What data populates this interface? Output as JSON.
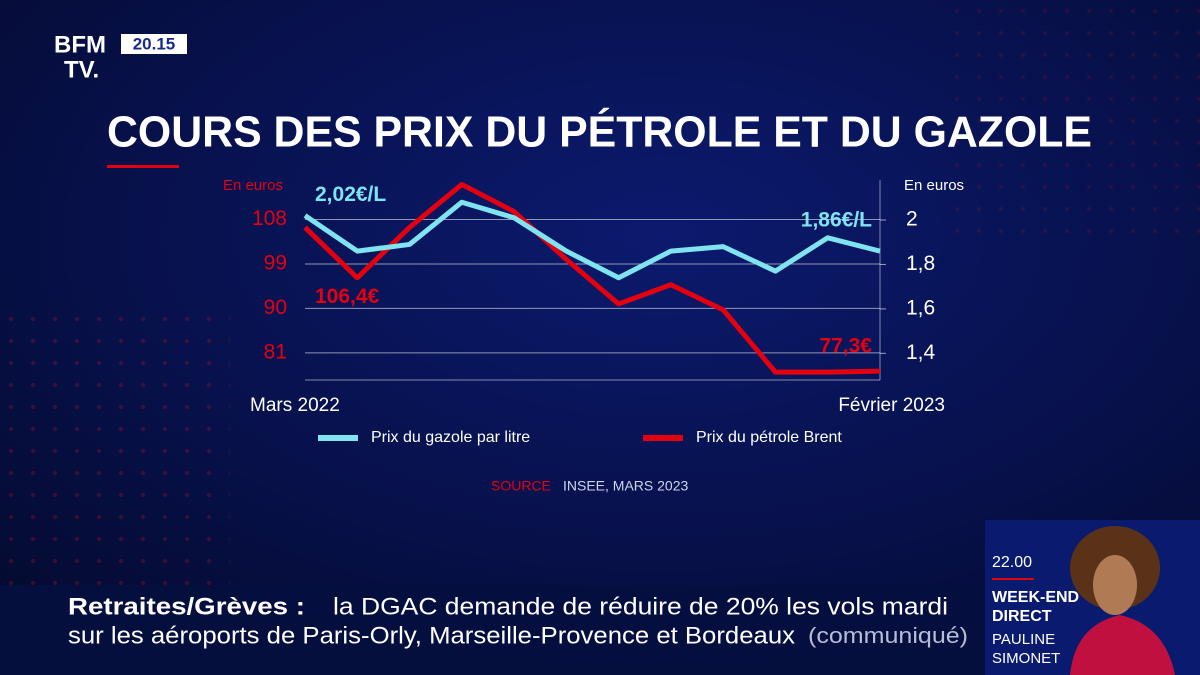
{
  "header": {
    "logo_top": "BFM",
    "logo_bottom": "TV.",
    "time": "20.15"
  },
  "chart_data": {
    "type": "line",
    "title": "COURS DES PRIX DU PÉTROLE ET DU GAZOLE",
    "y_label": "En euros",
    "y2_label": "En euros",
    "categories": [
      "Mars 2022",
      null,
      null,
      null,
      null,
      null,
      null,
      null,
      null,
      null,
      null,
      "Février 2023"
    ],
    "series": [
      {
        "name": "Prix du gazole par litre",
        "color": "#7fe3f0",
        "axis": "y2",
        "values": [
          2.02,
          1.86,
          1.89,
          2.08,
          2.01,
          1.86,
          1.74,
          1.86,
          1.88,
          1.77,
          1.92,
          1.86
        ],
        "value_labels": [
          "2,02€/L",
          null,
          null,
          null,
          null,
          null,
          null,
          null,
          null,
          null,
          null,
          "1,86€/L"
        ]
      },
      {
        "name": "Prix du pétrole Brent",
        "color": "#e3000f",
        "values": [
          106.4,
          96.2,
          106.4,
          115.1,
          109.6,
          99.9,
          90.9,
          94.8,
          89.7,
          77.1,
          77.1,
          77.3
        ],
        "value_labels": [
          "106,4€",
          null,
          null,
          null,
          null,
          null,
          null,
          null,
          null,
          null,
          null,
          "77,3€"
        ]
      }
    ],
    "ylim": [
      75.5,
      116
    ],
    "yticks": [
      81,
      90,
      99,
      108
    ],
    "y2lim": [
      1.28,
      2.18
    ],
    "y2ticks": [
      {
        "value": 1.4,
        "label": "1,4"
      },
      {
        "value": 1.6,
        "label": "1,6"
      },
      {
        "value": 1.8,
        "label": "1,8"
      },
      2
    ],
    "grid": true,
    "source_label": "SOURCE",
    "source": "INSEE, MARS 2023"
  },
  "ticker": {
    "topic": "Retraites/Grèves :",
    "line1": "la DGAC demande de réduire de 20% les vols mardi",
    "line2": "sur les aéroports de Paris-Orly, Marseille-Provence et Bordeaux",
    "note": "(communiqué)"
  },
  "program": {
    "time": "22.00",
    "name_1": "WEEK-END",
    "name_2": "DIRECT",
    "host_1": "PAULINE",
    "host_2": "SIMONET"
  }
}
